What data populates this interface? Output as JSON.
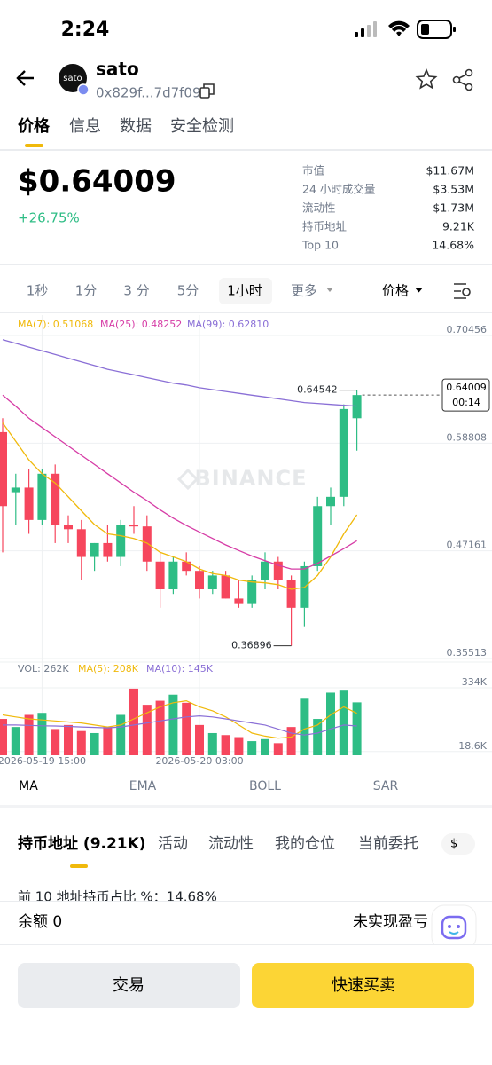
{
  "status_bar": {
    "time": "2:24"
  },
  "header": {
    "token_icon": "sato",
    "name": "sato",
    "address": "0x829f...7d7f09"
  },
  "tabs": [
    "价格",
    "信息",
    "数据",
    "安全检测"
  ],
  "price": {
    "value": "$0.64009",
    "change": "+26.75%"
  },
  "stats": [
    {
      "label": "市值",
      "value": "$11.67M"
    },
    {
      "label": "24 小时成交量",
      "value": "$3.53M"
    },
    {
      "label": "流动性",
      "value": "$1.73M"
    },
    {
      "label": "持币地址",
      "value": "9.21K"
    },
    {
      "label": "Top 10",
      "value": "14.68%"
    }
  ],
  "intervals": [
    "1秒",
    "1分",
    "3 分",
    "5分",
    "1小时",
    "更多"
  ],
  "price_mode": "价格",
  "chart_data": {
    "type": "candlestick",
    "watermark": "BINANCE",
    "categories": [
      null,
      null,
      null,
      "2026-05-19 15:00",
      null,
      null,
      null,
      null,
      null,
      null,
      null,
      null,
      null,
      null,
      null,
      "2026-05-20 03:00",
      null,
      null,
      null,
      null,
      null,
      null,
      null,
      null,
      null,
      null,
      null,
      null
    ],
    "open": [
      0.6,
      0.535,
      0.54,
      0.505,
      0.555,
      0.5,
      0.495,
      0.465,
      0.48,
      0.465,
      0.5,
      0.498,
      0.46,
      0.43,
      0.46,
      0.45,
      0.43,
      0.445,
      0.42,
      0.415,
      0.44,
      0.46,
      0.44,
      0.41,
      0.455,
      0.52,
      0.53,
      0.615
    ],
    "high": [
      0.615,
      0.555,
      0.56,
      0.56,
      0.565,
      0.51,
      0.505,
      0.48,
      0.5,
      0.505,
      0.52,
      0.51,
      0.47,
      0.465,
      0.47,
      0.455,
      0.45,
      0.45,
      0.44,
      0.445,
      0.47,
      0.465,
      0.445,
      0.46,
      0.53,
      0.54,
      0.63,
      0.64542
    ],
    "low": [
      0.47,
      0.5,
      0.49,
      0.5,
      0.48,
      0.48,
      0.44,
      0.45,
      0.46,
      0.455,
      0.49,
      0.45,
      0.41,
      0.425,
      0.445,
      0.42,
      0.425,
      0.42,
      0.41,
      0.41,
      0.43,
      0.43,
      0.36896,
      0.39,
      0.45,
      0.5,
      0.52,
      0.58
    ],
    "close": [
      0.52,
      0.54,
      0.505,
      0.555,
      0.5,
      0.495,
      0.465,
      0.48,
      0.465,
      0.5,
      0.498,
      0.46,
      0.43,
      0.46,
      0.45,
      0.43,
      0.445,
      0.42,
      0.415,
      0.44,
      0.46,
      0.44,
      0.41,
      0.455,
      0.52,
      0.53,
      0.625,
      0.64009
    ],
    "up_color": "#2ebd85",
    "down_color": "#f6465d",
    "ylim": [
      0.35513,
      0.70456
    ],
    "yticks": [
      0.70456,
      0.58808,
      0.47161,
      0.35513
    ],
    "current_price": 0.64009,
    "countdown": "00:14",
    "series": [
      {
        "name": "MA(7): 0.51068",
        "color": "#f0b90b",
        "values": [
          0.61,
          0.59,
          0.57,
          0.555,
          0.545,
          0.53,
          0.515,
          0.5,
          0.49,
          0.488,
          0.485,
          0.48,
          0.47,
          0.465,
          0.46,
          0.452,
          0.447,
          0.445,
          0.44,
          0.438,
          0.437,
          0.435,
          0.43,
          0.432,
          0.445,
          0.465,
          0.49,
          0.51068
        ]
      },
      {
        "name": "MA(25): 0.48252",
        "color": "#d63ca6",
        "values": [
          0.64,
          0.628,
          0.615,
          0.605,
          0.595,
          0.585,
          0.575,
          0.565,
          0.555,
          0.545,
          0.535,
          0.526,
          0.516,
          0.507,
          0.499,
          0.492,
          0.485,
          0.478,
          0.472,
          0.466,
          0.461,
          0.456,
          0.452,
          0.452,
          0.458,
          0.466,
          0.474,
          0.48252
        ]
      },
      {
        "name": "MA(99): 0.62810",
        "color": "#8a6fd6",
        "values": [
          0.7,
          0.696,
          0.692,
          0.688,
          0.684,
          0.68,
          0.676,
          0.672,
          0.668,
          0.665,
          0.662,
          0.659,
          0.656,
          0.653,
          0.651,
          0.648,
          0.646,
          0.644,
          0.642,
          0.64,
          0.638,
          0.636,
          0.634,
          0.632,
          0.631,
          0.63,
          0.629,
          0.6281
        ]
      }
    ],
    "volume_name": "VOL: 262K",
    "volume": [
      180000,
      140000,
      200000,
      210000,
      130000,
      150000,
      120000,
      110000,
      140000,
      200000,
      330000,
      250000,
      270000,
      300000,
      260000,
      150000,
      110000,
      100000,
      90000,
      70000,
      80000,
      60000,
      140000,
      280000,
      180000,
      310000,
      320000,
      262000
    ],
    "vol_ylim": [
      0,
      334000
    ],
    "vol_yticks": [
      {
        "value": 334000,
        "label": "334K"
      },
      {
        "value": 18600,
        "label": "18.6K"
      }
    ],
    "vol_series": [
      {
        "name": "MA(5): 208K",
        "color": "#f0b90b",
        "values": [
          200000,
          190000,
          180000,
          175000,
          170000,
          165000,
          160000,
          150000,
          140000,
          150000,
          180000,
          210000,
          240000,
          260000,
          270000,
          240000,
          220000,
          190000,
          150000,
          110000,
          95000,
          85000,
          90000,
          130000,
          150000,
          200000,
          240000,
          208000
        ]
      },
      {
        "name": "MA(10): 145K",
        "color": "#8a6fd6",
        "values": [
          150000,
          150000,
          148000,
          146000,
          145000,
          143000,
          140000,
          138000,
          136000,
          140000,
          150000,
          160000,
          170000,
          180000,
          190000,
          195000,
          190000,
          180000,
          170000,
          160000,
          150000,
          130000,
          110000,
          100000,
          110000,
          130000,
          150000,
          145000
        ]
      }
    ]
  },
  "indicators": [
    "MA",
    "EMA",
    "BOLL",
    "SAR"
  ],
  "holder_tabs": [
    "持币地址 (9.21K)",
    "活动",
    "流动性",
    "我的仓位",
    "当前委托"
  ],
  "currency_chip": "$",
  "top10_note": "前 10 地址持币占比 %：14.68%",
  "balance": {
    "label": "余额 0",
    "pnl": "未实现盈亏"
  },
  "buttons": [
    "交易",
    "快速买卖"
  ]
}
